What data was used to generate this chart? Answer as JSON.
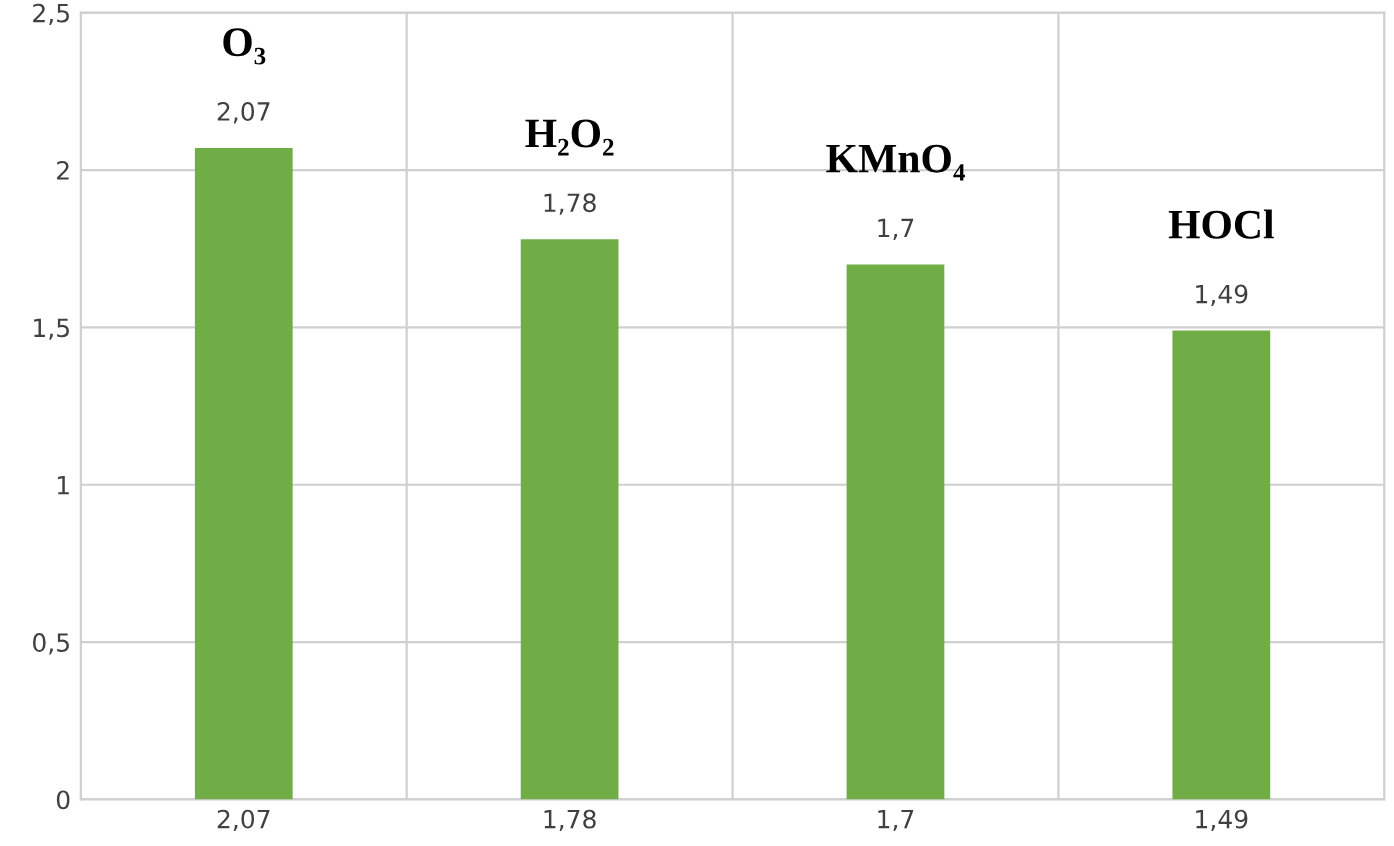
{
  "chart_data": {
    "type": "bar",
    "categories": [
      "2,07",
      "1,78",
      "1,7",
      "1,49"
    ],
    "values": [
      2.07,
      1.78,
      1.7,
      1.49
    ],
    "value_labels": [
      "2,07",
      "1,78",
      "1,7",
      "1,49"
    ],
    "color": "#70ad47",
    "ylim": [
      0,
      2.5
    ],
    "yticks": [
      0,
      {
        "value": 0.5,
        "label": "0,5"
      },
      1,
      {
        "value": 1.5,
        "label": "1,5"
      },
      2,
      {
        "value": 2.5,
        "label": "2,5"
      }
    ],
    "grid": true,
    "annotations": [
      {
        "text": "O₃",
        "x": "2,07",
        "y": 2.07
      },
      {
        "text": "H₂O₂",
        "x": "1,78",
        "y": 1.78
      },
      {
        "text": "KMnO₄",
        "x": "1,7",
        "y": 1.7
      },
      {
        "text": "HOCl",
        "x": "1,49",
        "y": 1.49
      }
    ]
  }
}
